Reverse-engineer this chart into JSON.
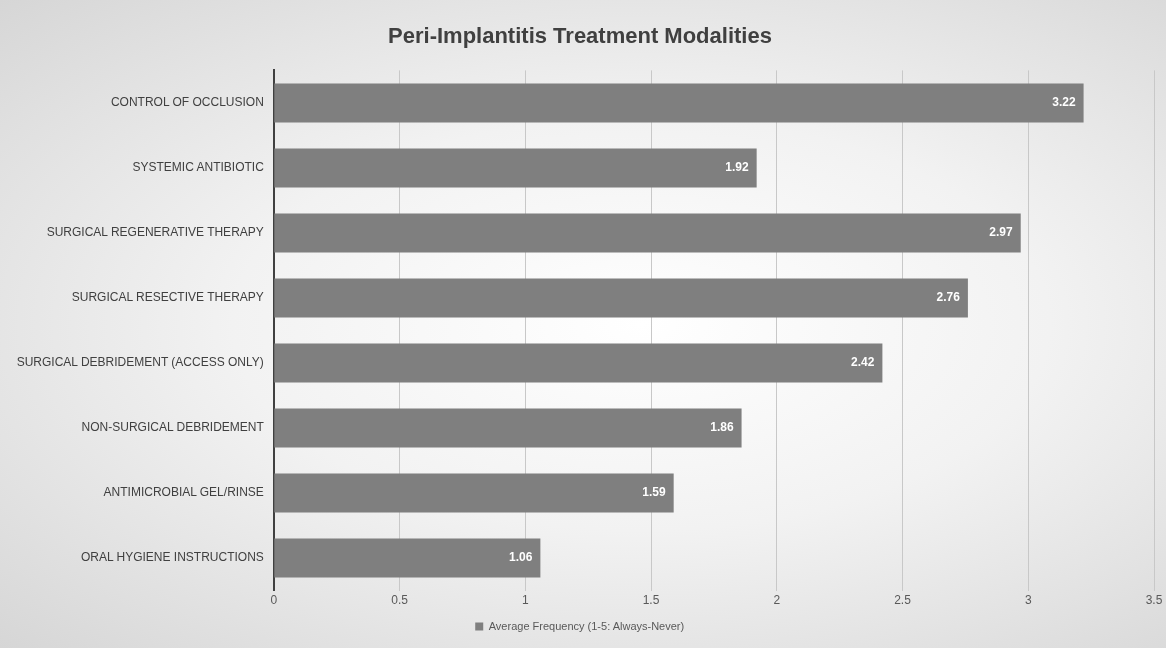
{
  "chart_data": {
    "type": "bar",
    "orientation": "horizontal",
    "title": "Peri-Implantitis Treatment Modalities",
    "categories": [
      "CONTROL OF OCCLUSION",
      "SYSTEMIC ANTIBIOTIC",
      "SURGICAL REGENERATIVE THERAPY",
      "SURGICAL RESECTIVE THERAPY",
      "SURGICAL DEBRIDEMENT (ACCESS ONLY)",
      "NON-SURGICAL DEBRIDEMENT",
      "ANTIMICROBIAL GEL/RINSE",
      "ORAL HYGIENE INSTRUCTIONS"
    ],
    "series": [
      {
        "name": "Average Frequency (1-5: Always-Never)",
        "color": "#7f7f7f",
        "values": [
          3.22,
          1.92,
          2.97,
          2.76,
          2.42,
          1.86,
          1.59,
          1.06
        ]
      }
    ],
    "xlim": [
      0,
      3.5
    ],
    "xticks": [
      0,
      0.5,
      1,
      1.5,
      2,
      2.5,
      3,
      3.5
    ],
    "grid": "x",
    "legend": "bottom",
    "data_labels": true
  }
}
